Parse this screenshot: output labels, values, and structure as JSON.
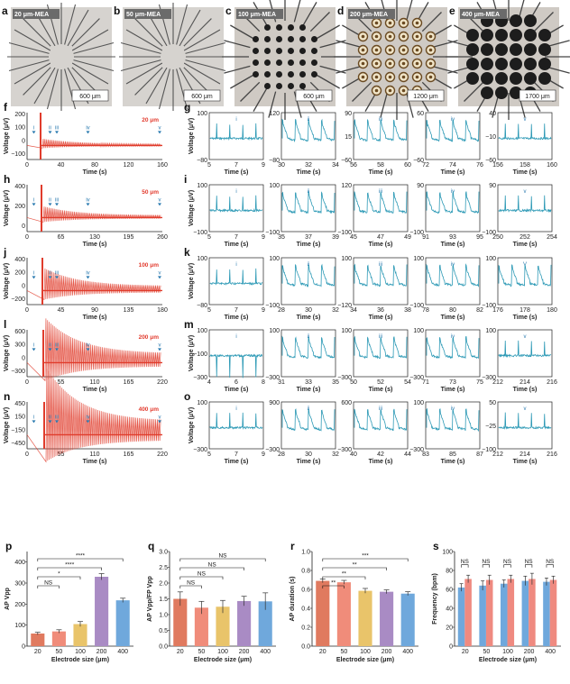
{
  "panels": {
    "photos": [
      {
        "letter": "a",
        "title": "20 μm-MEA",
        "scale": "600 μm",
        "kind": "lines"
      },
      {
        "letter": "b",
        "title": "50 μm-MEA",
        "scale": "600 μm",
        "kind": "lines"
      },
      {
        "letter": "c",
        "title": "100 μm-MEA",
        "scale": "600 μm",
        "kind": "dots"
      },
      {
        "letter": "d",
        "title": "200 μm-MEA",
        "scale": "1200 μm",
        "kind": "rings"
      },
      {
        "letter": "e",
        "title": "400 μm-MEA",
        "scale": "1700 μm",
        "kind": "big"
      }
    ],
    "rows": [
      {
        "overview_letter": "f",
        "zoom_letter": "g",
        "size_tag": "20 μm",
        "ov_yticks": [
          "200",
          "100",
          "0",
          "−100"
        ],
        "ov_xticks": [
          "0",
          "40",
          "80",
          "120",
          "160"
        ],
        "ov_xlabel": "Time (s)",
        "ov_ylabel": "Voltage (μV)",
        "ov_markers": [
          "i",
          "ii",
          "iii",
          "iv",
          "v"
        ],
        "zooms": [
          {
            "roman": "i",
            "yt": [
              "100",
              "",
              "−80"
            ],
            "xt": [
              "5",
              "7",
              "9"
            ],
            "xlabel": "Time (s)"
          },
          {
            "roman": "ii",
            "yt": [
              "120",
              "",
              "−80"
            ],
            "xt": [
              "30",
              "32",
              "34"
            ],
            "xlabel": "Time (s)"
          },
          {
            "roman": "iii",
            "yt": [
              "90",
              "15",
              "−60"
            ],
            "xt": [
              "56",
              "58",
              "60"
            ],
            "xlabel": "Time (s)"
          },
          {
            "roman": "iv",
            "yt": [
              "60",
              "",
              "−60"
            ],
            "xt": [
              "72",
              "74",
              "76"
            ],
            "xlabel": "Time (s)"
          },
          {
            "roman": "v",
            "yt": [
              "40",
              "−10",
              "−60"
            ],
            "xt": [
              "156",
              "158",
              "160"
            ],
            "xlabel": "Time (s)"
          }
        ],
        "zoom_ylabel": "Voltage (μV)"
      },
      {
        "overview_letter": "h",
        "zoom_letter": "i",
        "size_tag": "50 μm",
        "ov_yticks": [
          "400",
          "200",
          "0"
        ],
        "ov_xticks": [
          "0",
          "65",
          "130",
          "195",
          "260"
        ],
        "ov_xlabel": "Time (s)",
        "ov_ylabel": "Voltage (μV)",
        "ov_markers": [
          "i",
          "ii",
          "iii",
          "iv",
          "v"
        ],
        "zooms": [
          {
            "roman": "i",
            "yt": [
              "100",
              "",
              "−100"
            ],
            "xt": [
              "5",
              "7",
              "9"
            ],
            "xlabel": "Time (s)"
          },
          {
            "roman": "ii",
            "yt": [
              "100",
              "",
              "−100"
            ],
            "xt": [
              "35",
              "37",
              "39"
            ],
            "xlabel": "Time (s)"
          },
          {
            "roman": "iii",
            "yt": [
              "120",
              "",
              "−100"
            ],
            "xt": [
              "45",
              "47",
              "49"
            ],
            "xlabel": "Time (s)"
          },
          {
            "roman": "iv",
            "yt": [
              "90",
              "",
              "−100"
            ],
            "xt": [
              "91",
              "93",
              "95"
            ],
            "xlabel": "Time (s)"
          },
          {
            "roman": "v",
            "yt": [
              "90",
              "",
              "−100"
            ],
            "xt": [
              "250",
              "252",
              "254"
            ],
            "xlabel": "Time (s)"
          }
        ],
        "zoom_ylabel": "Voltage (μV)"
      },
      {
        "overview_letter": "j",
        "zoom_letter": "k",
        "size_tag": "100 μm",
        "ov_yticks": [
          "400",
          "200",
          "0",
          "−200"
        ],
        "ov_xticks": [
          "0",
          "45",
          "90",
          "135",
          "180"
        ],
        "ov_xlabel": "Time (s)",
        "ov_ylabel": "Voltage (μV)",
        "ov_markers": [
          "i",
          "ii",
          "iii",
          "iv",
          "v"
        ],
        "zooms": [
          {
            "roman": "i",
            "yt": [
              "100",
              "",
              "−80"
            ],
            "xt": [
              "5",
              "7",
              "9"
            ],
            "xlabel": "Time (s)"
          },
          {
            "roman": "ii",
            "yt": [
              "100",
              "",
              "−100"
            ],
            "xt": [
              "28",
              "30",
              "32"
            ],
            "xlabel": "Time (s)"
          },
          {
            "roman": "iii",
            "yt": [
              "100",
              "",
              "−120"
            ],
            "xt": [
              "34",
              "36",
              "38"
            ],
            "xlabel": "Time (s)"
          },
          {
            "roman": "iv",
            "yt": [
              "100",
              "",
              "−100"
            ],
            "xt": [
              "78",
              "80",
              "82"
            ],
            "xlabel": "Time (s)"
          },
          {
            "roman": "V",
            "yt": [
              "100",
              "",
              "−100"
            ],
            "xt": [
              "176",
              "178",
              "180"
            ],
            "xlabel": "Time (s)"
          }
        ],
        "zoom_ylabel": "Voltage (μV)"
      },
      {
        "overview_letter": "l",
        "zoom_letter": "m",
        "size_tag": "200 μm",
        "ov_yticks": [
          "600",
          "300",
          "0",
          "−300"
        ],
        "ov_xticks": [
          "0",
          "55",
          "110",
          "165",
          "220"
        ],
        "ov_xlabel": "Time (s)",
        "ov_ylabel": "Voltage (μV)",
        "ov_markers": [
          "i",
          "ii",
          "iii",
          "iv",
          "v"
        ],
        "zooms": [
          {
            "roman": "i",
            "yt": [
              "100",
              "−100",
              "−300"
            ],
            "xt": [
              "4",
              "6",
              "8"
            ],
            "xlabel": "Time (s)"
          },
          {
            "roman": "ii",
            "yt": [
              "100",
              "",
              "−300"
            ],
            "xt": [
              "31",
              "33",
              "35"
            ],
            "xlabel": "Time (s)"
          },
          {
            "roman": "iii",
            "yt": [
              "100",
              "",
              "−300"
            ],
            "xt": [
              "50",
              "52",
              "54"
            ],
            "xlabel": "Time (s)"
          },
          {
            "roman": "iv",
            "yt": [
              "100",
              "",
              "−300"
            ],
            "xt": [
              "71",
              "73",
              "75"
            ],
            "xlabel": "Time (s)"
          },
          {
            "roman": "v",
            "yt": [
              "100",
              "",
              "−300"
            ],
            "xt": [
              "212",
              "214",
              "216"
            ],
            "xlabel": "Time (s)"
          }
        ],
        "zoom_ylabel": "Voltage (μV)"
      },
      {
        "overview_letter": "n",
        "zoom_letter": "o",
        "size_tag": "400 μm",
        "ov_yticks": [
          "450",
          "150",
          "−150",
          "−450"
        ],
        "ov_xticks": [
          "0",
          "55",
          "110",
          "165",
          "220"
        ],
        "ov_xlabel": "Time (s)",
        "ov_ylabel": "Voltage (μV)",
        "ov_markers": [
          "i",
          "ii",
          "iii",
          "iv",
          "v"
        ],
        "zooms": [
          {
            "roman": "i",
            "yt": [
              "100",
              "",
              "−300"
            ],
            "xt": [
              "5",
              "7",
              "9"
            ],
            "xlabel": "Time (s)"
          },
          {
            "roman": "ii",
            "yt": [
              "900",
              "",
              "−300"
            ],
            "xt": [
              "28",
              "30",
              "32"
            ],
            "xlabel": "Time (s)"
          },
          {
            "roman": "iii",
            "yt": [
              "600",
              "",
              "−300"
            ],
            "xt": [
              "40",
              "42",
              "44"
            ],
            "xlabel": "Time (s)"
          },
          {
            "roman": "iv",
            "yt": [
              "100",
              "",
              "−300"
            ],
            "xt": [
              "83",
              "85",
              "87"
            ],
            "xlabel": "Time (s)"
          },
          {
            "roman": "v",
            "yt": [
              "50",
              "−25",
              "−100"
            ],
            "xt": [
              "212",
              "214",
              "216"
            ],
            "xlabel": "Time (s)"
          }
        ],
        "zoom_ylabel": "Voltage (μV)"
      }
    ]
  },
  "chart_data": [
    {
      "type": "bar",
      "letter": "p",
      "categories": [
        "20",
        "50",
        "100",
        "200",
        "400"
      ],
      "values": [
        60,
        70,
        105,
        330,
        218
      ],
      "errors": [
        6,
        8,
        12,
        15,
        10
      ],
      "colors": [
        "#e07a5f",
        "#f08c7a",
        "#e9c46a",
        "#a98bc4",
        "#6fa8dc"
      ],
      "ylim": [
        0,
        450
      ],
      "yticks": [
        "0",
        "100",
        "200",
        "300",
        "400"
      ],
      "ylabel": "AP Vpp",
      "xlabel": "Electrode size (μm)",
      "sig": [
        [
          "20",
          "50",
          "NS"
        ],
        [
          "20",
          "100",
          "*"
        ],
        [
          "20",
          "200",
          "****"
        ],
        [
          "20",
          "400",
          "****"
        ]
      ]
    },
    {
      "type": "bar",
      "letter": "q",
      "categories": [
        "20",
        "50",
        "100",
        "200",
        "400"
      ],
      "values": [
        1.5,
        1.22,
        1.25,
        1.43,
        1.42
      ],
      "errors": [
        0.22,
        0.2,
        0.2,
        0.15,
        0.27
      ],
      "colors": [
        "#e07a5f",
        "#f08c7a",
        "#e9c46a",
        "#a98bc4",
        "#6fa8dc"
      ],
      "ylim": [
        0,
        3
      ],
      "yticks": [
        "0.0",
        "0.5",
        "1.0",
        "1.5",
        "2.0",
        "2.5",
        "3.0"
      ],
      "ylabel": "AP Vpp/FP Vpp",
      "xlabel": "Electrode size (μm)",
      "sig": [
        [
          "20",
          "50",
          "NS"
        ],
        [
          "20",
          "100",
          "NS"
        ],
        [
          "20",
          "200",
          "NS"
        ],
        [
          "20",
          "400",
          "NS"
        ]
      ]
    },
    {
      "type": "bar",
      "letter": "r",
      "categories": [
        "20",
        "50",
        "100",
        "200",
        "400"
      ],
      "values": [
        0.69,
        0.675,
        0.585,
        0.575,
        0.555
      ],
      "errors": [
        0.02,
        0.02,
        0.025,
        0.02,
        0.02
      ],
      "colors": [
        "#e07a5f",
        "#f08c7a",
        "#e9c46a",
        "#a98bc4",
        "#6fa8dc"
      ],
      "ylim": [
        0,
        1.0
      ],
      "yticks": [
        "0.0",
        "0.2",
        "0.4",
        "0.6",
        "0.8",
        "1.0"
      ],
      "ylabel": "AP duration (s)",
      "xlabel": "Electrode size (μm)",
      "sig": [
        [
          "20",
          "50",
          "**"
        ],
        [
          "20",
          "100",
          "**"
        ],
        [
          "20",
          "200",
          "**"
        ],
        [
          "20",
          "400",
          "***"
        ]
      ]
    },
    {
      "type": "bar",
      "letter": "s",
      "grouped": true,
      "categories": [
        "20",
        "50",
        "100",
        "200",
        "400"
      ],
      "series": [
        {
          "values": [
            62,
            64,
            66,
            69,
            68
          ],
          "errors": [
            4,
            5,
            4,
            5,
            4
          ],
          "color": "#6fa8dc"
        },
        {
          "values": [
            71,
            70,
            71,
            71,
            70
          ],
          "errors": [
            4,
            5,
            4,
            6,
            4
          ],
          "color": "#ef8a80"
        }
      ],
      "ylim": [
        0,
        100
      ],
      "yticks": [
        "0",
        "20",
        "40",
        "60",
        "80",
        "100"
      ],
      "ylabel": "Frequency (bpm)",
      "xlabel": "Electrode size (μm)",
      "sig_label": "NS"
    }
  ],
  "colors": {
    "trace_red": "#e03c2c",
    "trace_teal": "#2e9ab6",
    "roman_blue": "#2a7ab0"
  }
}
